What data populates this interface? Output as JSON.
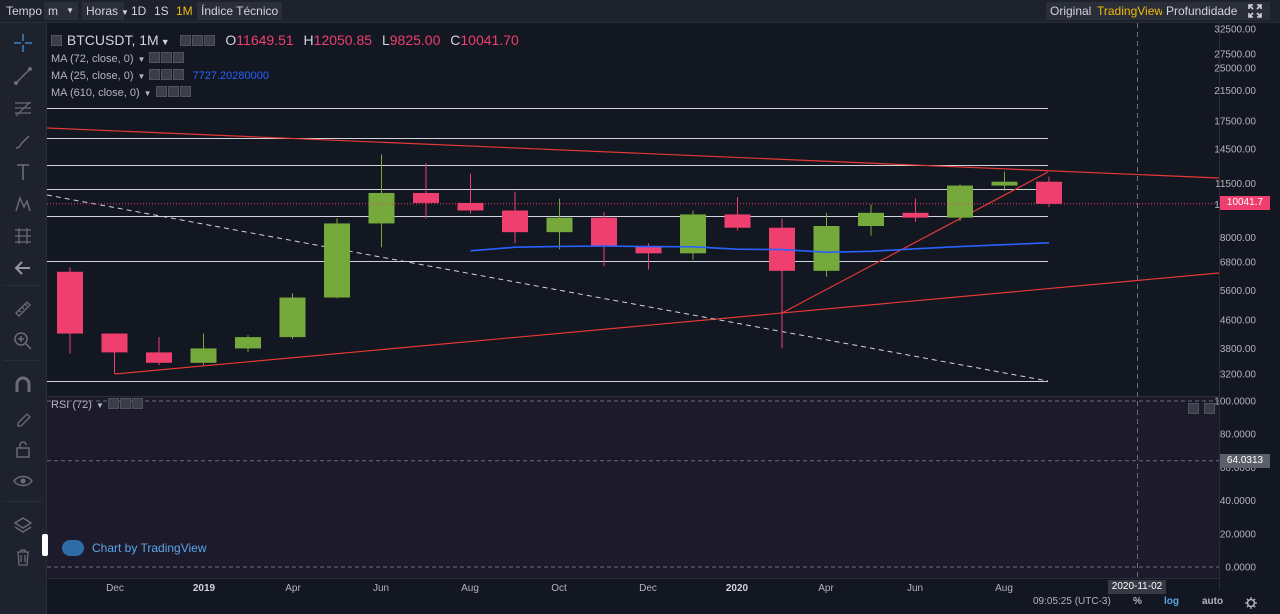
{
  "toolbar": {
    "tempo": "Tempo",
    "interval_dd": "m",
    "horas_dd": "Horas",
    "intervals": [
      "1D",
      "1S",
      "1M"
    ],
    "active_interval": "1M",
    "indicators": "Índice Técnico",
    "views": [
      "Original",
      "TradingView",
      "Profundidade"
    ],
    "active_view": "TradingView",
    "fullscreen_icon": "fullscreen-icon"
  },
  "sidebar": {
    "icons": [
      "crosshair-icon",
      "trend-line-icon",
      "fib-icon",
      "brush-icon",
      "text-icon",
      "pattern-icon",
      "forecast-icon",
      "back-arrow-icon",
      "ruler-icon",
      "zoom-icon",
      "magnet-icon",
      "lock-drawing-icon",
      "lock-icon",
      "eye-icon",
      "layers-icon",
      "trash-icon"
    ]
  },
  "legend": {
    "symbol": "BTCUSDT, 1M",
    "o_label": "O",
    "o_value": "11649.51",
    "h_label": "H",
    "h_value": "12050.85",
    "l_label": "L",
    "l_value": "9825.00",
    "c_label": "C",
    "c_value": "10041.70",
    "ma1": "MA (72, close, 0)",
    "ma2": "MA (25, close, 0)",
    "ma2_value": "7727.20280000",
    "ma3": "MA (610, close, 0)",
    "rsi": "RSI (72)"
  },
  "chart_data": {
    "type": "candlestick",
    "symbol": "BTCUSDT",
    "interval": "1M",
    "y_scale": "log",
    "ylim": [
      2950,
      35000
    ],
    "price_ticks": [
      32500,
      27500,
      25000,
      21500,
      17500,
      14500,
      11500,
      10000,
      8000,
      6800,
      5600,
      4600,
      3800,
      3200
    ],
    "current_price": 10041.7,
    "candles": [
      {
        "date": "2018-11",
        "o": 6360,
        "h": 6560,
        "l": 3670,
        "c": 4200
      },
      {
        "date": "2018-12",
        "o": 4200,
        "h": 4200,
        "l": 3200,
        "c": 3700
      },
      {
        "date": "2019-01",
        "o": 3700,
        "h": 4100,
        "l": 3400,
        "c": 3450
      },
      {
        "date": "2019-02",
        "o": 3450,
        "h": 4200,
        "l": 3400,
        "c": 3800
      },
      {
        "date": "2019-03",
        "o": 3800,
        "h": 4150,
        "l": 3700,
        "c": 4100
      },
      {
        "date": "2019-04",
        "o": 4100,
        "h": 5500,
        "l": 4050,
        "c": 5350
      },
      {
        "date": "2019-05",
        "o": 5350,
        "h": 9100,
        "l": 5320,
        "c": 8800
      },
      {
        "date": "2019-06",
        "o": 8800,
        "h": 14000,
        "l": 7500,
        "c": 10800
      },
      {
        "date": "2019-07",
        "o": 10800,
        "h": 13200,
        "l": 9100,
        "c": 10100
      },
      {
        "date": "2019-08",
        "o": 10100,
        "h": 12300,
        "l": 9400,
        "c": 9600
      },
      {
        "date": "2019-09",
        "o": 9600,
        "h": 10900,
        "l": 7700,
        "c": 8300
      },
      {
        "date": "2019-10",
        "o": 8300,
        "h": 10400,
        "l": 7400,
        "c": 9150
      },
      {
        "date": "2019-11",
        "o": 9150,
        "h": 9500,
        "l": 6600,
        "c": 7550
      },
      {
        "date": "2019-12",
        "o": 7550,
        "h": 7700,
        "l": 6450,
        "c": 7200
      },
      {
        "date": "2020-01",
        "o": 7200,
        "h": 9600,
        "l": 6900,
        "c": 9350
      },
      {
        "date": "2020-02",
        "o": 9350,
        "h": 10500,
        "l": 8400,
        "c": 8550
      },
      {
        "date": "2020-03",
        "o": 8550,
        "h": 9100,
        "l": 3800,
        "c": 6400
      },
      {
        "date": "2020-04",
        "o": 6400,
        "h": 9450,
        "l": 6150,
        "c": 8650
      },
      {
        "date": "2020-05",
        "o": 8650,
        "h": 10000,
        "l": 8100,
        "c": 9450
      },
      {
        "date": "2020-06",
        "o": 9450,
        "h": 10400,
        "l": 8900,
        "c": 9150
      },
      {
        "date": "2020-07",
        "o": 9150,
        "h": 11450,
        "l": 8950,
        "c": 11350
      },
      {
        "date": "2020-08",
        "o": 11350,
        "h": 12470,
        "l": 10950,
        "c": 11650
      },
      {
        "date": "2020-09",
        "o": 11649.51,
        "h": 12050.85,
        "l": 9825.0,
        "c": 10041.7
      }
    ],
    "ma25": [
      {
        "date": "2019-08",
        "v": 7320
      },
      {
        "date": "2019-09",
        "v": 7500
      },
      {
        "date": "2019-10",
        "v": 7540
      },
      {
        "date": "2019-11",
        "v": 7560
      },
      {
        "date": "2019-12",
        "v": 7530
      },
      {
        "date": "2020-01",
        "v": 7520
      },
      {
        "date": "2020-02",
        "v": 7400
      },
      {
        "date": "2020-03",
        "v": 7380
      },
      {
        "date": "2020-04",
        "v": 7250
      },
      {
        "date": "2020-05",
        "v": 7300
      },
      {
        "date": "2020-06",
        "v": 7420
      },
      {
        "date": "2020-07",
        "v": 7530
      },
      {
        "date": "2020-08",
        "v": 7630
      },
      {
        "date": "2020-09",
        "v": 7727.2028
      }
    ],
    "x_labels": [
      "Dec",
      "2019",
      "Apr",
      "Jun",
      "Aug",
      "Oct",
      "Dec",
      "2020",
      "Apr",
      "Jun",
      "Aug"
    ],
    "crosshair_date": "2020-11-02",
    "rsi": {
      "name": "RSI (72)",
      "ticks": [
        "100.0000",
        "80.0000",
        "60.0000",
        "40.0000",
        "20.0000",
        "0.0000"
      ],
      "current": "64.0313",
      "bands": [
        0,
        64.0313,
        100
      ]
    },
    "colors": {
      "up": "#76a93b",
      "down": "#ef3f6f",
      "ma25": "#2962ff",
      "trend": "#e53935",
      "background": "#131722"
    }
  },
  "status": {
    "time": "09:05:25 (UTC-3)",
    "percent": "%",
    "log": "log",
    "auto": "auto",
    "settings_icon": "gear-icon"
  },
  "watermark": "Chart by TradingView"
}
